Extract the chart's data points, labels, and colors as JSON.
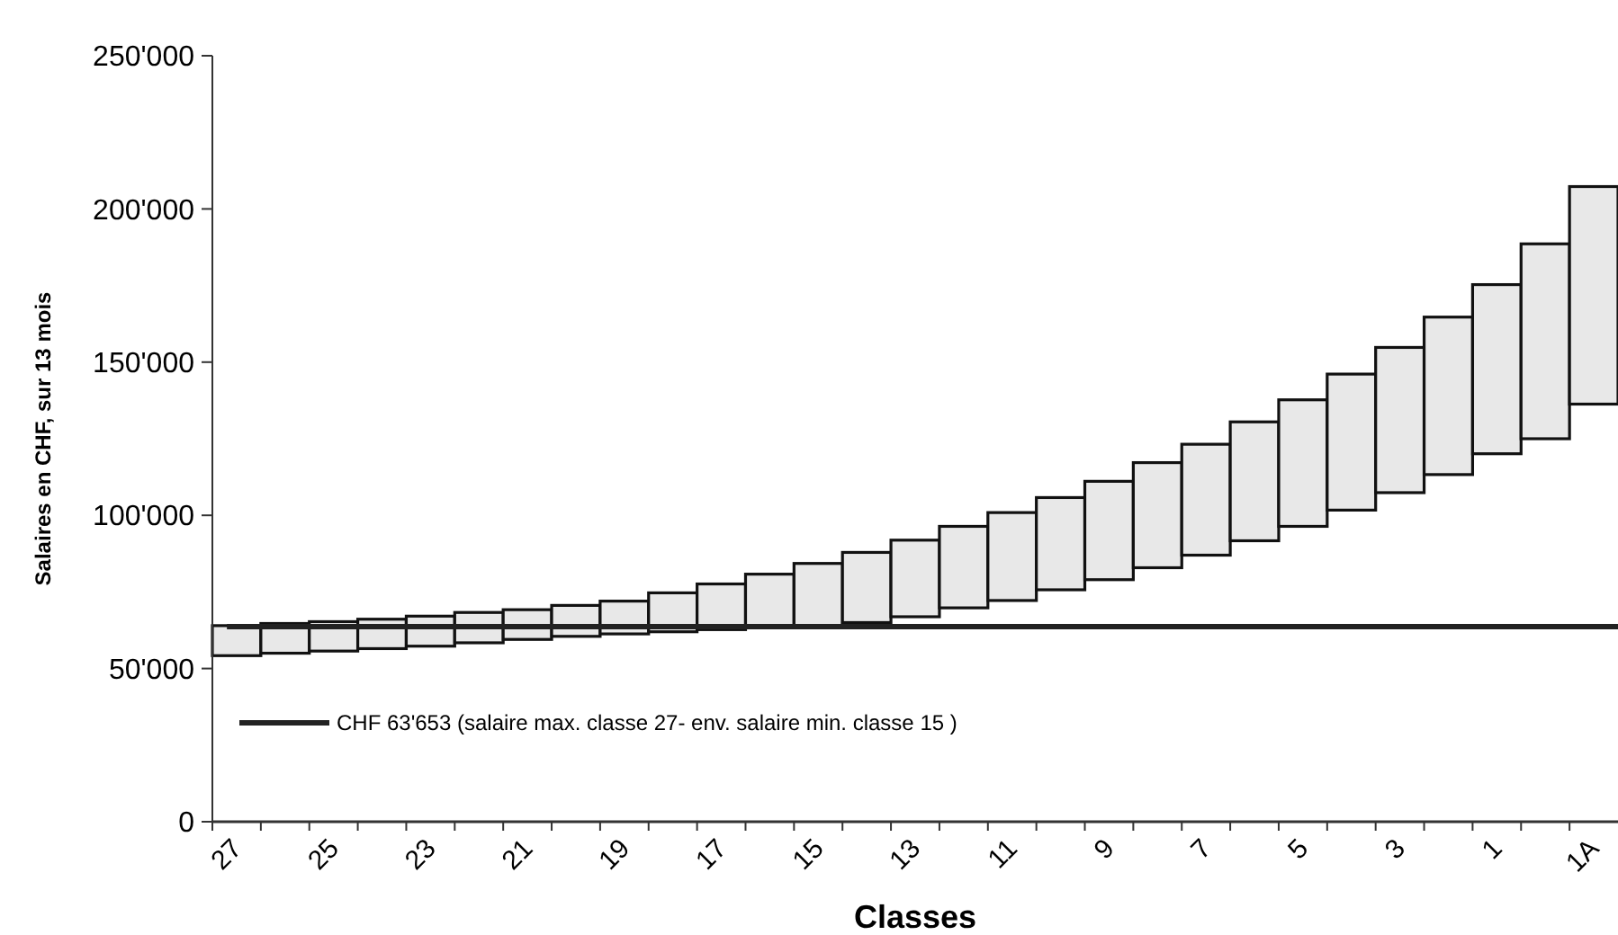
{
  "chart_data": {
    "type": "bar",
    "xlabel": "Classes",
    "ylabel": "Salaires en CHF, sur  13 mois",
    "categories": [
      "27",
      null,
      "25",
      null,
      "23",
      null,
      "21",
      null,
      "19",
      null,
      "17",
      null,
      "15",
      null,
      "13",
      null,
      "11",
      null,
      "9",
      null,
      "7",
      null,
      "5",
      null,
      "3",
      null,
      "1",
      null,
      "1A"
    ],
    "base": [
      54200,
      55000,
      55700,
      56500,
      57300,
      58400,
      59500,
      60500,
      61300,
      62000,
      62700,
      63300,
      63700,
      65000,
      66900,
      69800,
      72200,
      75700,
      79000,
      82900,
      87000,
      91700,
      96400,
      101700,
      107400,
      113300,
      120100,
      125000,
      136300
    ],
    "values": [
      9800,
      9700,
      9600,
      9600,
      9800,
      9900,
      9700,
      10100,
      10700,
      12700,
      14900,
      17500,
      20600,
      22900,
      25000,
      26600,
      28700,
      30100,
      32100,
      34300,
      36200,
      38800,
      41300,
      44400,
      47400,
      51400,
      55200,
      63600,
      71000
    ],
    "color": "#e8e8e8",
    "ylim": [
      0,
      250000
    ],
    "yticks": [
      0,
      {
        "value": 50000,
        "label": "50'000"
      },
      {
        "value": 100000,
        "label": "100'000"
      },
      {
        "value": 150000,
        "label": "150'000"
      },
      {
        "value": 200000,
        "label": "200'000"
      },
      {
        "value": 250000,
        "label": "250'000"
      }
    ],
    "ref_lines": [
      {
        "axis": "y",
        "value": 63653,
        "label": "CHF 63'653 (salaire max. classe 27- env. salaire min. classe 15 )",
        "color": "#222222"
      }
    ],
    "legend": "bottom left",
    "grid": false
  }
}
